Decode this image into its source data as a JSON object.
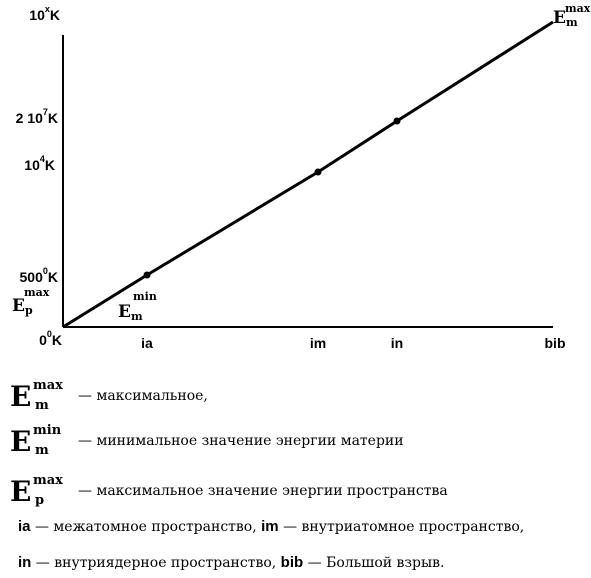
{
  "chart_data": {
    "type": "line",
    "title": "",
    "xlabel": "",
    "ylabel": "",
    "x_categories": [
      "ia",
      "im",
      "in",
      "bib"
    ],
    "y_ticks": [
      {
        "base": "0",
        "sup": "0",
        "unit": "K"
      },
      {
        "base": "500",
        "sup": "0",
        "unit": "K"
      },
      {
        "base": "10",
        "sup": "4",
        "unit": "K"
      },
      {
        "base": "2 10",
        "sup": "7",
        "unit": "K"
      },
      {
        "base": "10",
        "sup": "x",
        "unit": "K"
      }
    ],
    "series": [
      {
        "points": [
          {
            "x": "0",
            "y": "0K"
          },
          {
            "x": "ia",
            "y": "500K"
          },
          {
            "x": "im",
            "y": "10^4 K"
          },
          {
            "x": "in",
            "y": "2·10^7 K"
          },
          {
            "x": "bib",
            "y": "10^x K"
          }
        ]
      }
    ],
    "annotations": [
      {
        "id": "ep_max",
        "base": "E",
        "sub": "p",
        "sup": "max"
      },
      {
        "id": "em_min",
        "base": "E",
        "sub": "m",
        "sup": "min"
      },
      {
        "id": "em_max",
        "base": "E",
        "sub": "m",
        "sup": "max"
      }
    ],
    "colors": {
      "line": "#000000",
      "axis": "#000000",
      "background": "#ffffff"
    }
  },
  "legend": {
    "rows": [
      {
        "sup": "max",
        "sub": "m",
        "desc": "— максимальное,"
      },
      {
        "sup": "min",
        "sub": "m",
        "desc": "— минимальное   значение энергии материи"
      },
      {
        "sup": "max",
        "sub": "p",
        "desc": "— максимальное значение энергии пространства"
      }
    ],
    "symbol": "E",
    "line1": {
      "k1": "ia",
      "t1": " — межатомное пространство,  ",
      "k2": "im",
      "t2": " — внутриатомное  пространство,"
    },
    "line2": {
      "k1": "in",
      "t1": " — внутриядерное пространство,  ",
      "k2": "bib",
      "t2": "  — Большой взрыв."
    }
  }
}
